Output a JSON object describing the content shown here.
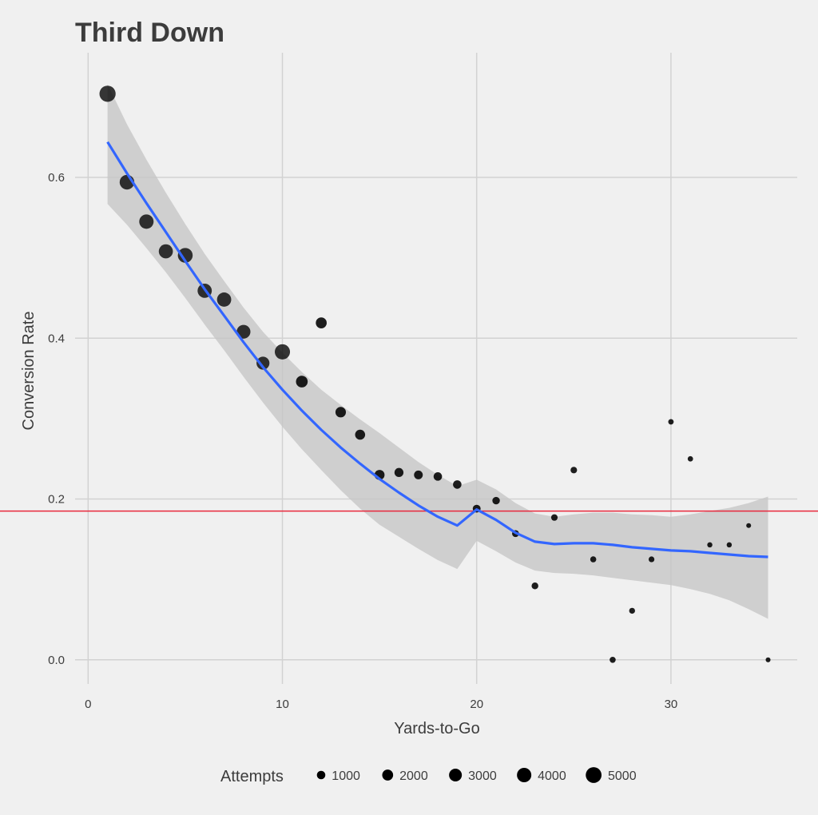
{
  "chart_data": {
    "type": "scatter",
    "title": "Third Down",
    "xlabel": "Yards-to-Go",
    "ylabel": "Conversion Rate",
    "xlim": [
      -1,
      36.5
    ],
    "ylim": [
      -0.03,
      0.755
    ],
    "xticks": [
      0,
      10,
      20,
      30
    ],
    "yticks": [
      0.0,
      0.2,
      0.4,
      0.6
    ],
    "ytick_labels": [
      "0.0",
      "0.2",
      "0.4",
      "0.6"
    ],
    "grid": true,
    "points": [
      {
        "x": 1,
        "y": 0.704,
        "attempts": 5300
      },
      {
        "x": 2,
        "y": 0.594,
        "attempts": 4200
      },
      {
        "x": 3,
        "y": 0.545,
        "attempts": 4000
      },
      {
        "x": 4,
        "y": 0.508,
        "attempts": 3800
      },
      {
        "x": 5,
        "y": 0.503,
        "attempts": 4300
      },
      {
        "x": 6,
        "y": 0.459,
        "attempts": 3900
      },
      {
        "x": 7,
        "y": 0.448,
        "attempts": 3900
      },
      {
        "x": 8,
        "y": 0.408,
        "attempts": 3600
      },
      {
        "x": 9,
        "y": 0.369,
        "attempts": 3100
      },
      {
        "x": 10,
        "y": 0.383,
        "attempts": 4600
      },
      {
        "x": 11,
        "y": 0.346,
        "attempts": 2400
      },
      {
        "x": 12,
        "y": 0.419,
        "attempts": 2000
      },
      {
        "x": 13,
        "y": 0.308,
        "attempts": 1800
      },
      {
        "x": 14,
        "y": 0.28,
        "attempts": 1600
      },
      {
        "x": 15,
        "y": 0.23,
        "attempts": 1600
      },
      {
        "x": 16,
        "y": 0.233,
        "attempts": 1200
      },
      {
        "x": 17,
        "y": 0.23,
        "attempts": 1100
      },
      {
        "x": 18,
        "y": 0.228,
        "attempts": 1000
      },
      {
        "x": 19,
        "y": 0.218,
        "attempts": 1000
      },
      {
        "x": 20,
        "y": 0.188,
        "attempts": 800
      },
      {
        "x": 21,
        "y": 0.198,
        "attempts": 700
      },
      {
        "x": 22,
        "y": 0.157,
        "attempts": 550
      },
      {
        "x": 23,
        "y": 0.092,
        "attempts": 500
      },
      {
        "x": 24,
        "y": 0.177,
        "attempts": 450
      },
      {
        "x": 25,
        "y": 0.236,
        "attempts": 450
      },
      {
        "x": 26,
        "y": 0.125,
        "attempts": 350
      },
      {
        "x": 27,
        "y": 0.0,
        "attempts": 350
      },
      {
        "x": 28,
        "y": 0.061,
        "attempts": 320
      },
      {
        "x": 29,
        "y": 0.125,
        "attempts": 300
      },
      {
        "x": 30,
        "y": 0.296,
        "attempts": 250
      },
      {
        "x": 31,
        "y": 0.25,
        "attempts": 230
      },
      {
        "x": 32,
        "y": 0.143,
        "attempts": 200
      },
      {
        "x": 33,
        "y": 0.143,
        "attempts": 200
      },
      {
        "x": 34,
        "y": 0.167,
        "attempts": 150
      },
      {
        "x": 35,
        "y": 0.0,
        "attempts": 150
      }
    ],
    "smooth_fit": {
      "color": "#3366ff",
      "x": [
        1,
        2,
        3,
        4,
        5,
        6,
        7,
        8,
        9,
        10,
        11,
        12,
        13,
        14,
        15,
        16,
        17,
        18,
        19,
        20,
        21,
        22,
        23,
        24,
        25,
        26,
        27,
        28,
        29,
        30,
        31,
        32,
        33,
        34,
        35
      ],
      "y": [
        0.644,
        0.605,
        0.568,
        0.532,
        0.496,
        0.461,
        0.428,
        0.395,
        0.364,
        0.336,
        0.31,
        0.286,
        0.264,
        0.244,
        0.225,
        0.208,
        0.192,
        0.178,
        0.167,
        0.187,
        0.174,
        0.158,
        0.147,
        0.144,
        0.145,
        0.145,
        0.143,
        0.14,
        0.138,
        0.136,
        0.135,
        0.133,
        0.131,
        0.129,
        0.128
      ],
      "lower": [
        0.567,
        0.541,
        0.512,
        0.482,
        0.45,
        0.417,
        0.385,
        0.352,
        0.32,
        0.29,
        0.262,
        0.236,
        0.211,
        0.188,
        0.168,
        0.153,
        0.138,
        0.124,
        0.113,
        0.148,
        0.135,
        0.121,
        0.111,
        0.108,
        0.107,
        0.105,
        0.102,
        0.099,
        0.096,
        0.093,
        0.088,
        0.082,
        0.074,
        0.063,
        0.051
      ],
      "upper": [
        0.716,
        0.666,
        0.622,
        0.581,
        0.542,
        0.505,
        0.471,
        0.438,
        0.408,
        0.382,
        0.358,
        0.336,
        0.317,
        0.299,
        0.282,
        0.264,
        0.246,
        0.23,
        0.216,
        0.224,
        0.212,
        0.195,
        0.182,
        0.178,
        0.181,
        0.183,
        0.183,
        0.181,
        0.18,
        0.178,
        0.181,
        0.185,
        0.189,
        0.195,
        0.203
      ],
      "band_color": "#c4c4c4"
    },
    "reference_line": {
      "y": 0.185,
      "color": "#e8283c"
    },
    "point_color": "#000000",
    "legend": {
      "title": "Attempts",
      "position": "bottom",
      "entries": [
        {
          "label": "1000",
          "value": 1000
        },
        {
          "label": "2000",
          "value": 2000
        },
        {
          "label": "3000",
          "value": 3000
        },
        {
          "label": "4000",
          "value": 4000
        },
        {
          "label": "5000",
          "value": 5000
        }
      ]
    }
  }
}
